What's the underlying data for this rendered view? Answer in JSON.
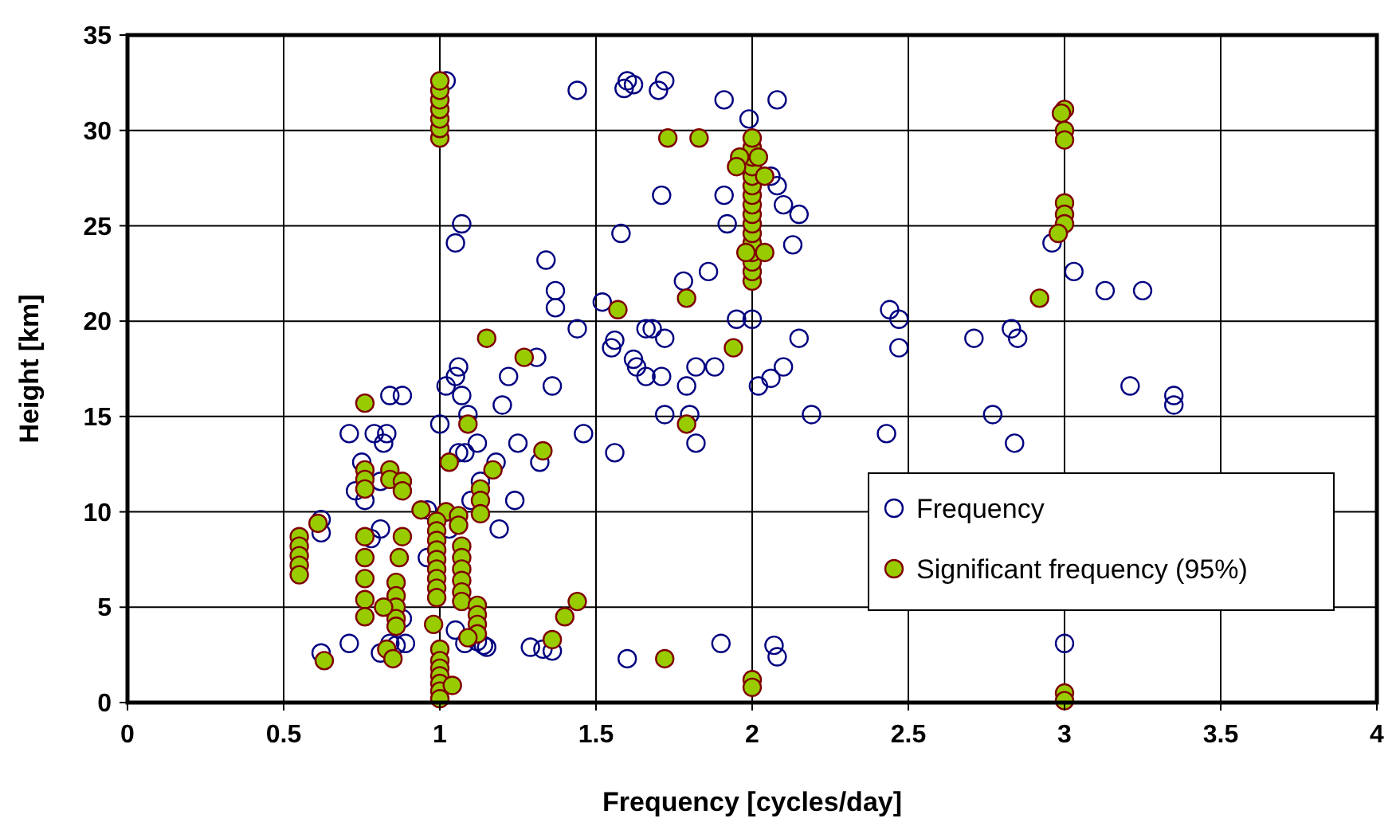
{
  "chart_data": {
    "type": "scatter",
    "xlabel": "Frequency [cycles/day]",
    "ylabel": "Height [km]",
    "xlim": [
      0,
      4
    ],
    "xticks": [
      0,
      0.5,
      1,
      1.5,
      2,
      2.5,
      3,
      3.5,
      4
    ],
    "ylim": [
      0,
      35
    ],
    "yticks": [
      0,
      5,
      10,
      15,
      20,
      25,
      30,
      35
    ],
    "grid": true,
    "legend": "right",
    "marker": "circle",
    "series": [
      {
        "name": "Frequency",
        "color": "#000080",
        "x": [
          1.02,
          1.6,
          1.62,
          1.59,
          1.44,
          1.72,
          1.7,
          2.08,
          1.91,
          1.99,
          1.07,
          1.05,
          1.34,
          1.37,
          1.37,
          1.44,
          1.52,
          1.56,
          1.55,
          1.58,
          1.71,
          1.66,
          1.68,
          1.72,
          1.78,
          1.82,
          1.86,
          1.91,
          1.92,
          1.95,
          2.06,
          2.08,
          2.1,
          2.15,
          2.13,
          2.0,
          2.15,
          2.1,
          2.06,
          2.02,
          2.19,
          2.44,
          2.47,
          2.47,
          2.43,
          2.71,
          2.77,
          2.83,
          2.85,
          2.84,
          2.96,
          3.03,
          3.13,
          3.25,
          3.21,
          3.35,
          3.35,
          1.36,
          1.31,
          1.22,
          1.2,
          1.25,
          1.18,
          1.24,
          1.32,
          1.46,
          1.56,
          1.63,
          1.66,
          1.72,
          1.71,
          1.79,
          1.88,
          1.8,
          1.82,
          1.62,
          1.06,
          1.05,
          1.07,
          1.02,
          1.09,
          1.12,
          1.06,
          1.08,
          1.0,
          0.88,
          0.84,
          0.79,
          0.83,
          0.82,
          0.71,
          0.75,
          0.81,
          0.73,
          0.76,
          0.78,
          0.81,
          0.96,
          1.03,
          1.13,
          1.1,
          1.19,
          0.62,
          0.62,
          0.88,
          0.96,
          0.84,
          0.89,
          0.71,
          0.86,
          1.08,
          1.14,
          1.29,
          1.33,
          1.36,
          1.6,
          1.9,
          2.07,
          2.08,
          3.0,
          0.62,
          0.81,
          1.05,
          1.12,
          1.15
        ],
        "values": [
          32.6,
          32.6,
          32.4,
          32.2,
          32.1,
          32.6,
          32.1,
          31.6,
          31.6,
          30.6,
          25.1,
          24.1,
          23.2,
          21.6,
          20.7,
          19.6,
          21.0,
          19.0,
          18.6,
          24.6,
          26.6,
          19.6,
          19.6,
          19.1,
          22.1,
          17.6,
          22.6,
          26.6,
          25.1,
          20.1,
          27.6,
          27.1,
          26.1,
          25.6,
          24.0,
          20.1,
          19.1,
          17.6,
          17.0,
          16.6,
          15.1,
          20.6,
          20.1,
          18.6,
          14.1,
          19.1,
          15.1,
          19.6,
          19.1,
          13.6,
          24.1,
          22.6,
          21.6,
          21.6,
          16.6,
          16.1,
          15.6,
          16.6,
          18.1,
          17.1,
          15.6,
          13.6,
          12.6,
          10.6,
          12.6,
          14.1,
          13.1,
          17.6,
          17.1,
          15.1,
          17.1,
          16.6,
          17.6,
          15.1,
          13.6,
          18.0,
          17.6,
          17.1,
          16.1,
          16.6,
          15.1,
          13.6,
          13.1,
          13.1,
          14.6,
          16.1,
          16.1,
          14.1,
          14.1,
          13.6,
          14.1,
          12.6,
          11.6,
          11.1,
          10.6,
          8.6,
          9.1,
          10.1,
          9.1,
          11.6,
          10.6,
          9.1,
          9.6,
          8.9,
          4.4,
          7.6,
          3.1,
          3.1,
          3.1,
          3.0,
          3.1,
          3.0,
          2.9,
          2.8,
          2.7,
          2.3,
          3.1,
          3.0,
          2.4,
          3.1,
          2.6,
          2.6,
          3.8,
          3.2,
          2.9
        ]
      },
      {
        "name": "Significant frequency (95%)",
        "color": "#99cc00",
        "x": [
          1,
          1,
          1,
          1,
          1,
          1,
          1,
          2,
          2,
          2,
          2,
          2,
          2,
          2,
          2,
          2,
          2,
          2,
          2,
          2,
          2,
          2,
          2,
          1.96,
          2.02,
          1.95,
          2.04,
          1.98,
          2.04,
          1.73,
          1.83,
          1.79,
          1.57,
          1.94,
          1.79,
          1.15,
          1.27,
          1.72,
          2.0,
          2.0,
          3.0,
          2.99,
          3.0,
          3.0,
          3.0,
          3.0,
          3.0,
          2.98,
          2.92,
          3.0,
          3.0,
          0.76,
          1.09,
          1.33,
          1.03,
          1.17,
          0.76,
          0.76,
          0.76,
          0.84,
          0.84,
          0.88,
          0.88,
          1.13,
          1.13,
          1.13,
          0.94,
          1.02,
          1.06,
          1.06,
          0.99,
          0.99,
          0.99,
          0.99,
          0.99,
          0.99,
          0.99,
          0.99,
          0.99,
          1.07,
          1.07,
          1.07,
          1.07,
          1.07,
          1.07,
          0.55,
          0.55,
          0.55,
          0.55,
          0.55,
          0.61,
          0.76,
          0.76,
          0.76,
          0.76,
          0.76,
          0.88,
          0.87,
          0.86,
          0.86,
          0.86,
          0.86,
          0.86,
          0.82,
          1.12,
          1.12,
          1.12,
          1.12,
          1.09,
          0.98,
          1.0,
          1.0,
          1.0,
          1.0,
          1.0,
          1.0,
          1.0,
          1.04,
          0.63,
          0.83,
          0.85,
          1.4,
          1.44,
          1.36
        ],
        "values": [
          29.6,
          30.1,
          30.6,
          31.1,
          31.6,
          32.1,
          32.6,
          22.1,
          22.6,
          23.1,
          23.6,
          24.1,
          24.6,
          25.1,
          25.6,
          26.1,
          26.6,
          27.1,
          27.6,
          28.1,
          28.6,
          29.1,
          29.6,
          28.6,
          28.6,
          28.1,
          27.6,
          23.6,
          23.6,
          29.6,
          29.6,
          21.2,
          20.6,
          18.6,
          14.6,
          19.1,
          18.1,
          2.3,
          1.2,
          0.8,
          31.1,
          30.9,
          30.0,
          29.5,
          26.2,
          25.6,
          25.1,
          24.6,
          21.2,
          0.5,
          0.1,
          15.7,
          14.6,
          13.2,
          12.6,
          12.2,
          12.2,
          11.7,
          11.2,
          12.2,
          11.7,
          11.6,
          11.1,
          11.2,
          10.6,
          9.9,
          10.1,
          10.0,
          9.8,
          9.3,
          9.5,
          9.0,
          8.5,
          8.0,
          7.5,
          7.0,
          6.5,
          6.0,
          5.5,
          8.2,
          7.6,
          7.0,
          6.4,
          5.8,
          5.3,
          8.7,
          8.2,
          7.7,
          7.2,
          6.7,
          9.4,
          8.7,
          7.6,
          6.5,
          5.4,
          4.5,
          8.7,
          7.6,
          6.3,
          5.6,
          5.0,
          4.4,
          4.0,
          5.0,
          5.1,
          4.6,
          4.1,
          3.6,
          3.4,
          4.1,
          2.8,
          2.2,
          1.8,
          1.4,
          1.0,
          0.6,
          0.2,
          0.9,
          2.2,
          2.8,
          2.3,
          4.5,
          5.3,
          3.3
        ]
      }
    ]
  }
}
